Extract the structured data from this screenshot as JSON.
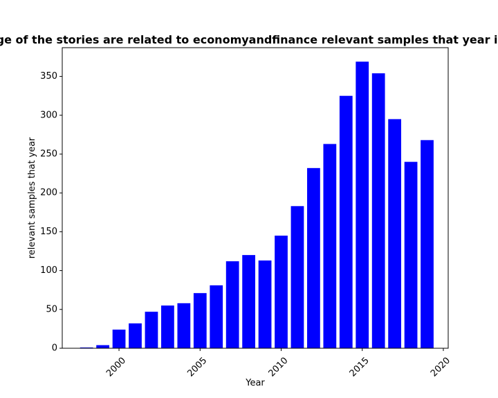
{
  "chart_data": {
    "type": "bar",
    "title": "What percentage of the stories are related to economyandfinance relevant samples that year in privacy policies",
    "xlabel": "Year",
    "ylabel": "relevant samples that year",
    "bar_color": "#0000ff",
    "x": [
      1998,
      1999,
      2000,
      2001,
      2002,
      2003,
      2004,
      2005,
      2006,
      2007,
      2008,
      2009,
      2010,
      2011,
      2012,
      2013,
      2014,
      2015,
      2016,
      2017,
      2018,
      2019
    ],
    "values": [
      1,
      4,
      24,
      32,
      47,
      55,
      58,
      71,
      81,
      112,
      120,
      113,
      145,
      183,
      232,
      263,
      325,
      369,
      354,
      295,
      240,
      268
    ],
    "xlim": [
      1996.5,
      2020.3
    ],
    "ylim": [
      0,
      387
    ],
    "xticks": [
      2000,
      2005,
      2010,
      2015,
      2020
    ],
    "xtick_labels": [
      "2000",
      "2005",
      "2010",
      "2015",
      "2020"
    ],
    "yticks": [
      0,
      50,
      100,
      150,
      200,
      250,
      300,
      350
    ],
    "ytick_labels": [
      "0",
      "50",
      "100",
      "150",
      "200",
      "250",
      "300",
      "350"
    ],
    "xtick_rotation_deg": 45
  }
}
